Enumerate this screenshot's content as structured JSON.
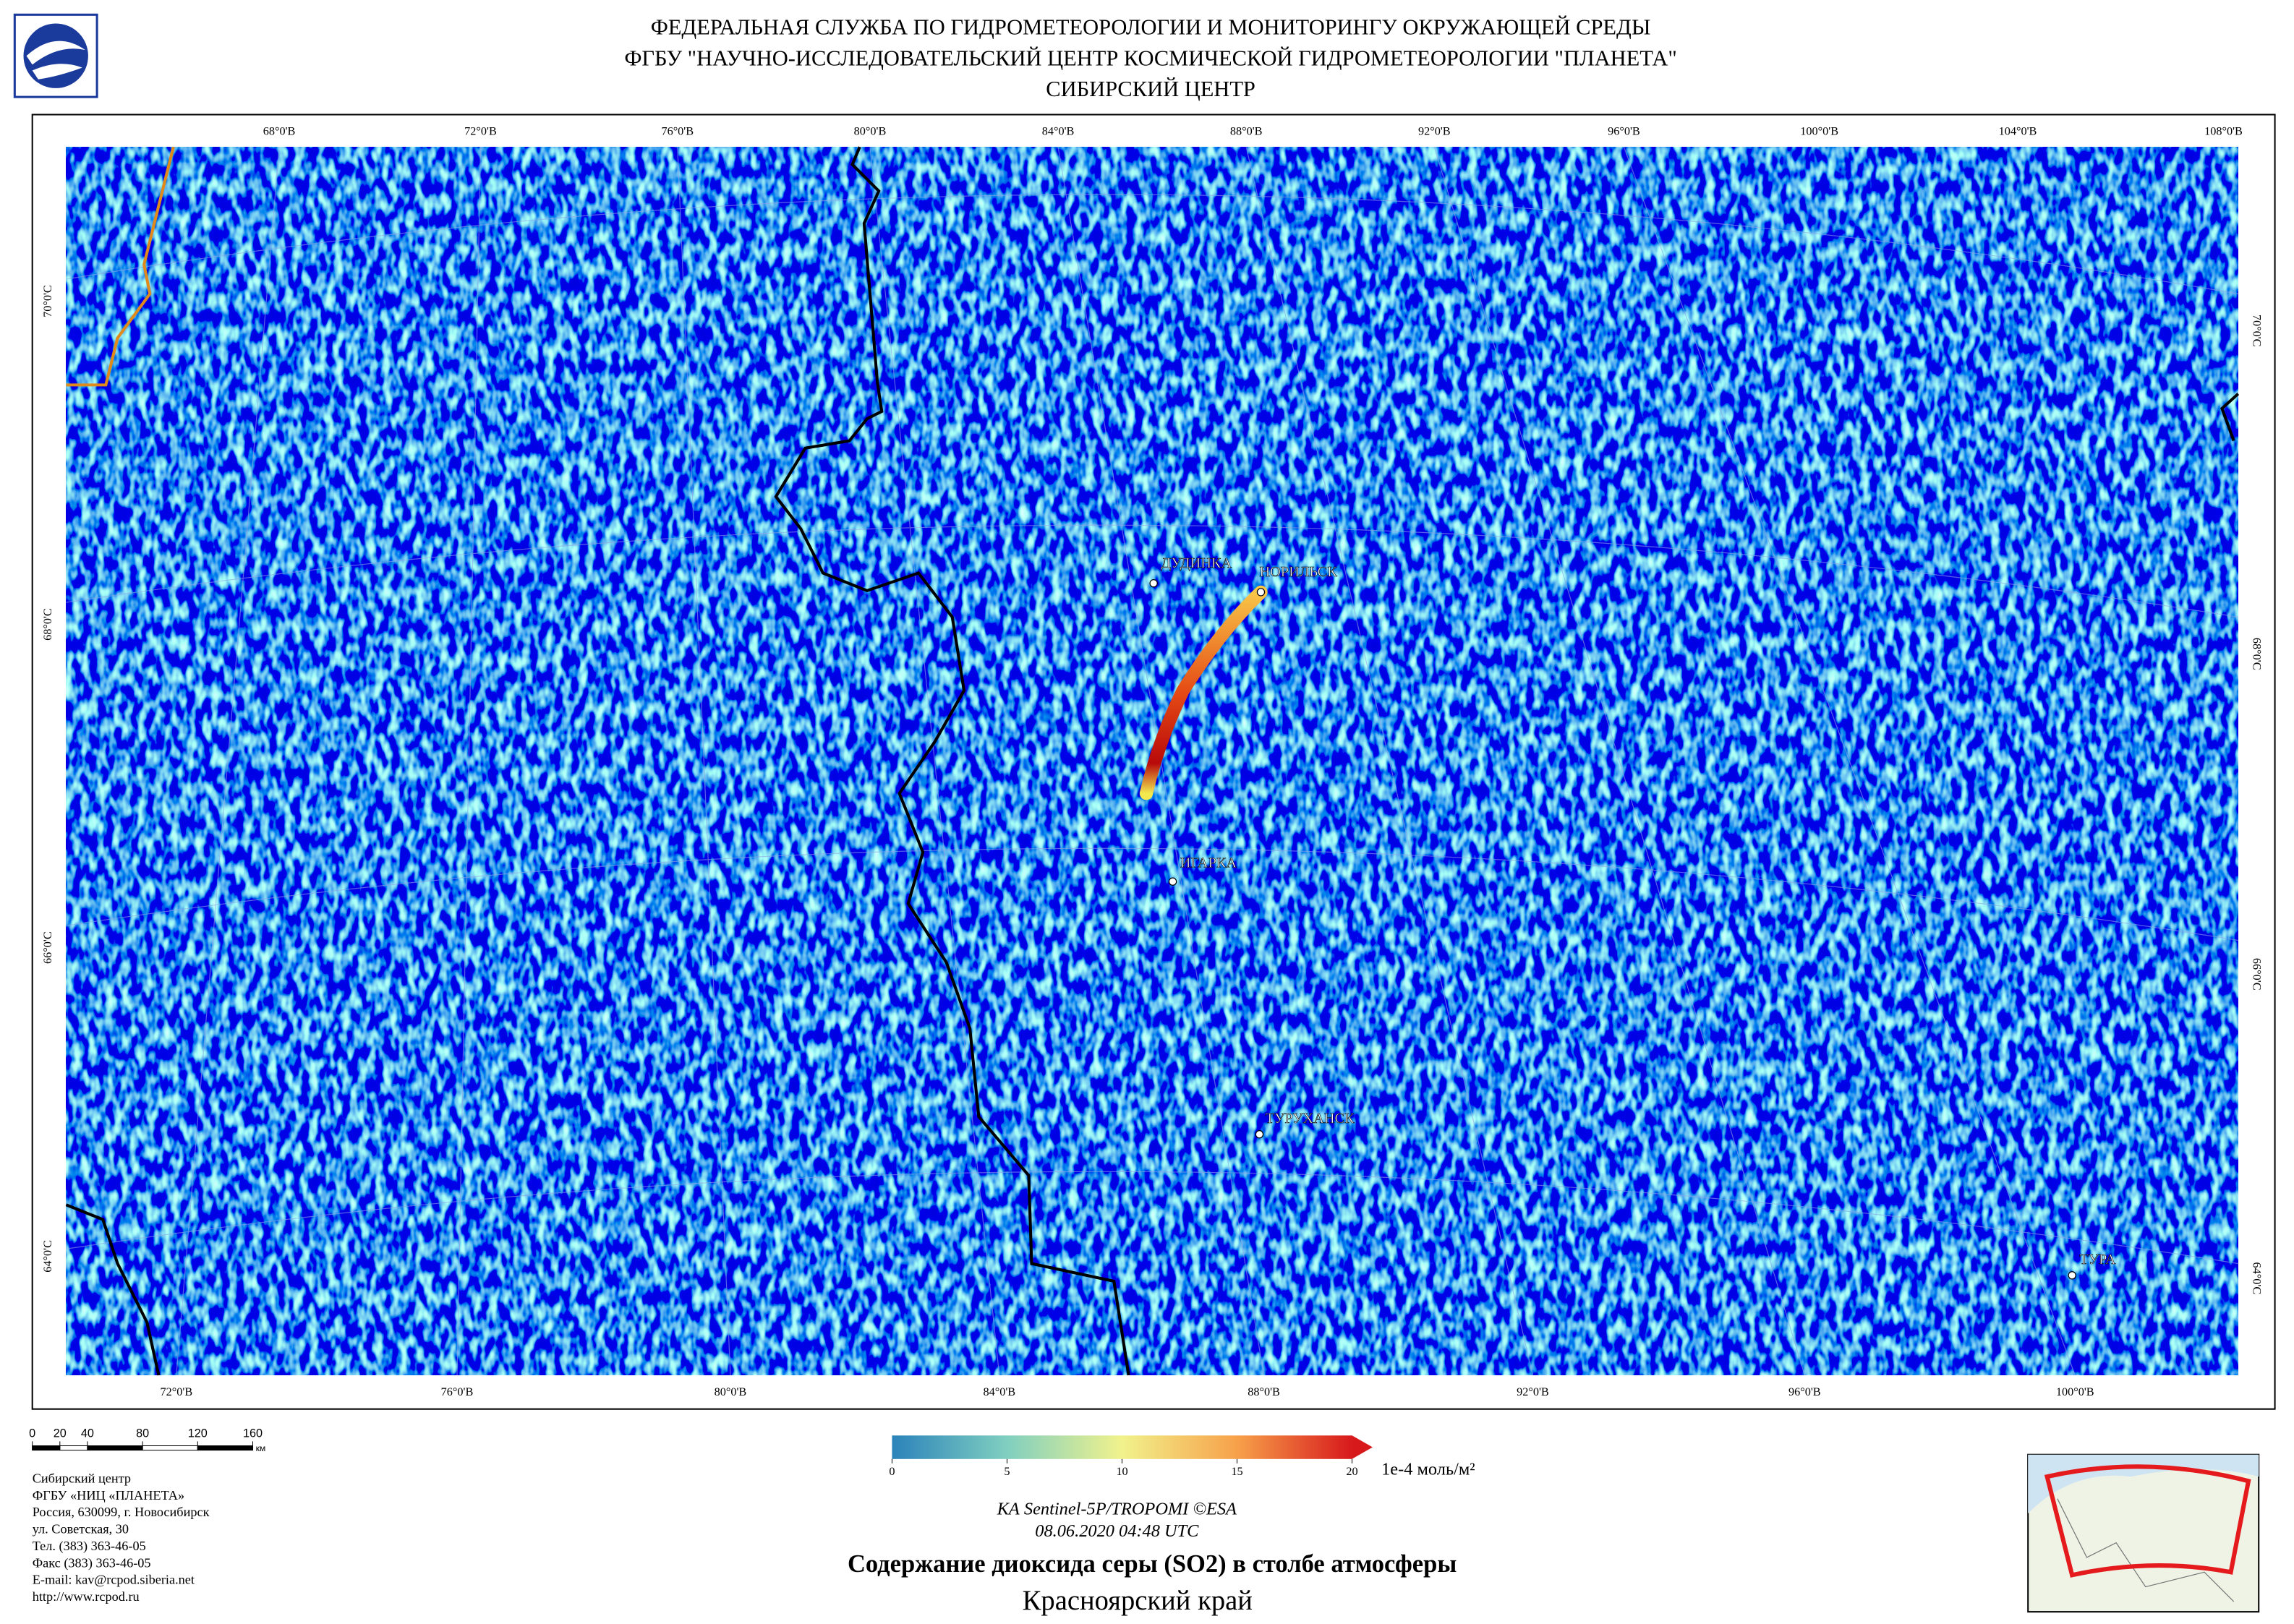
{
  "header": {
    "lines": [
      "ФЕДЕРАЛЬНАЯ СЛУЖБА ПО ГИДРОМЕТЕОРОЛОГИИ И МОНИТОРИНГУ ОКРУЖАЮЩЕЙ СРЕДЫ",
      "ФГБУ \"НАУЧНО-ИССЛЕДОВАТЕЛЬСКИЙ ЦЕНТР КОСМИЧЕСКОЙ ГИДРОМЕТЕОРОЛОГИИ \"ПЛАНЕТА\"",
      "СИБИРСКИЙ ЦЕНТР"
    ]
  },
  "graticule": {
    "top": [
      "68°0'В",
      "72°0'В",
      "76°0'В",
      "80°0'В",
      "84°0'В",
      "88°0'В",
      "92°0'В",
      "96°0'В",
      "100°0'В",
      "104°0'В",
      "108°0'В"
    ],
    "bottom": [
      "72°0'В",
      "76°0'В",
      "80°0'В",
      "84°0'В",
      "88°0'В",
      "92°0'В",
      "96°0'В",
      "100°0'В"
    ],
    "left": [
      "70°0'С",
      "68°0'С",
      "66°0'С",
      "64°0'С"
    ],
    "right": [
      "70°0'С",
      "68°0'С",
      "66°0'С",
      "64°0'С"
    ]
  },
  "cities": [
    "ДУДИНКА",
    "НОРИЛЬСК",
    "ИГАРКА",
    "ТУРУХАНСК",
    "ТУРА"
  ],
  "colorbar": {
    "ticks": [
      0,
      5,
      10,
      15,
      20
    ],
    "unit": "1e-4 моль/м²"
  },
  "scale": {
    "ticks": [
      0,
      20,
      40,
      80,
      120,
      160
    ],
    "unit": "км"
  },
  "address": [
    "Сибирский центр",
    "ФГБУ «НИЦ «ПЛАНЕТА»",
    "Россия, 630099, г. Новосибирск",
    "ул. Советская, 30",
    "Тел. (383) 363-46-05",
    "Факс (383) 363-46-05",
    "E-mail: kav@rcpod.siberia.net",
    "http://www.rcpod.ru"
  ],
  "credits": [
    "КА Sentinel-5P/TROPOMI ©ESA",
    "08.06.2020  04:48 UTC"
  ],
  "title": "Содержание диоксида серы (SO2) в столбе атмосферы",
  "subtitle": "Красноярский край"
}
